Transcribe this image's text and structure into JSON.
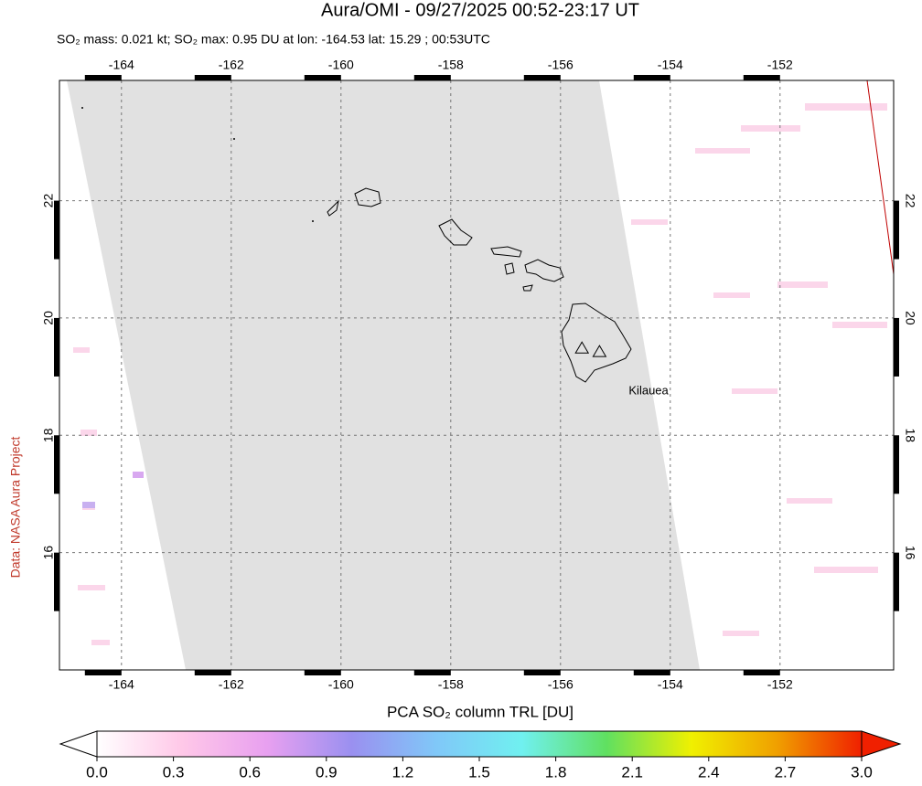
{
  "title": "Aura/OMI - 09/27/2025 00:52-23:17 UT",
  "subtitle": "SO₂ mass: 0.021 kt; SO₂ max: 0.95 DU at lon: -164.53 lat: 15.29 ; 00:53UTC",
  "credit": "Data: NASA Aura Project",
  "map": {
    "xlim": [
      -165.13,
      -149.93
    ],
    "ylim": [
      14,
      24.05
    ],
    "xticks": [
      -164,
      -162,
      -160,
      -158,
      -156,
      -154,
      -152
    ],
    "yticks": [
      16,
      18,
      20,
      22
    ],
    "grid": true,
    "volcanoes": [
      {
        "lon": -155.61,
        "lat": 19.48
      },
      {
        "lon": -155.29,
        "lat": 19.42,
        "label": "Kilauea"
      }
    ]
  },
  "colorbar": {
    "label": "PCA SO₂ column TRL [DU]",
    "lim": [
      0,
      3
    ],
    "ticks": [
      {
        "value": 0,
        "label": "0.0"
      },
      {
        "value": 0.3,
        "label": "0.3"
      },
      {
        "value": 0.6,
        "label": "0.6"
      },
      {
        "value": 0.9,
        "label": "0.9"
      },
      {
        "value": 1.2,
        "label": "1.2"
      },
      {
        "value": 1.5,
        "label": "1.5"
      },
      {
        "value": 1.8,
        "label": "1.8"
      },
      {
        "value": 2.1,
        "label": "2.1"
      },
      {
        "value": 2.4,
        "label": "2.4"
      },
      {
        "value": 2.7,
        "label": "2.7"
      },
      {
        "value": 3.0,
        "label": "3.0"
      }
    ],
    "colors": [
      "#ffffff",
      "#ffc8e8",
      "#e8a0f0",
      "#9a90f0",
      "#80c8f8",
      "#70f0f0",
      "#60e060",
      "#f0f000",
      "#f0a000",
      "#f02000"
    ]
  }
}
